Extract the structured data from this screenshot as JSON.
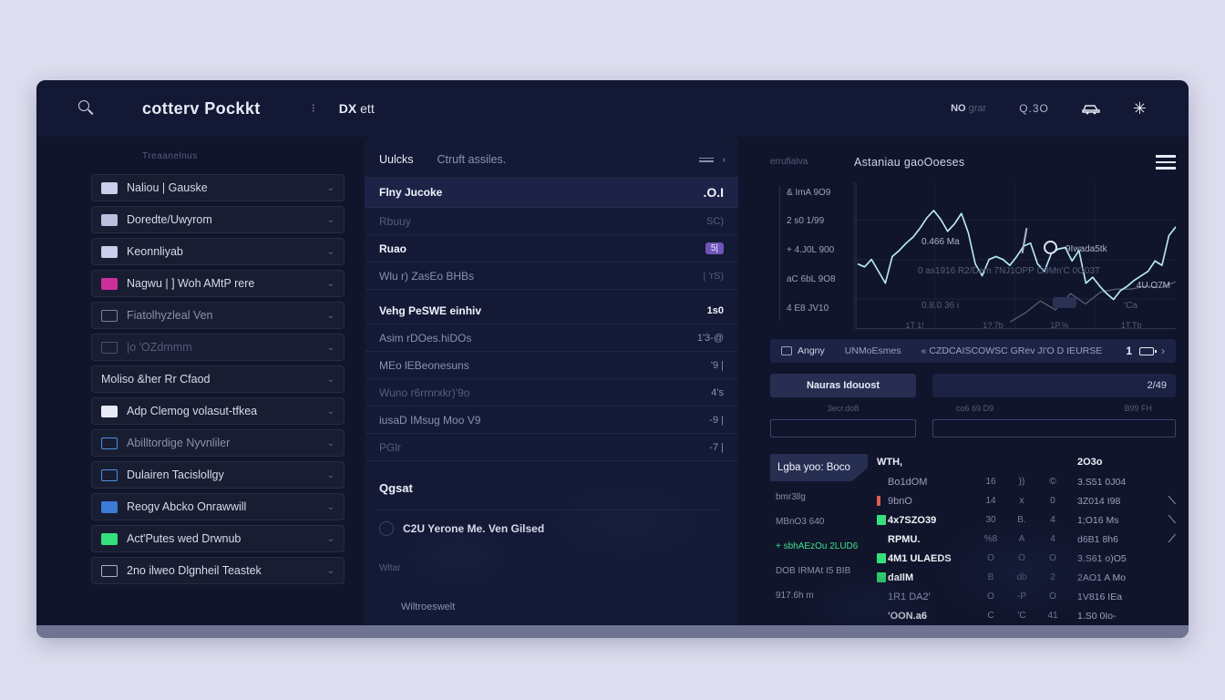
{
  "topbar": {
    "brand": "cotterv Pockkt",
    "dots": "⁝",
    "menu_bold": "DX",
    "menu_rest": " ett",
    "right_stat_strong": "NO",
    "right_stat_dim": " grar",
    "time": "Q.3O"
  },
  "sidebar": {
    "section_label": "Treaanelnus",
    "chevron_char": "⌄",
    "items": [
      {
        "label": "Naliou | Gauske",
        "label_cls": "",
        "icon_css": "background:#c9cfe8"
      },
      {
        "label": "Doredte/Uwyrom",
        "label_cls": "",
        "icon_css": "background:#b9bfdd"
      },
      {
        "label": "Keonnliyab",
        "label_cls": "",
        "icon_css": "background:#c9cfe8"
      },
      {
        "label": "Nagwu | ] Woh AMtP rere",
        "label_cls": "",
        "icon_css": "background:#cc2f9a"
      },
      {
        "label": "Fiatolhyzleal Ven",
        "label_cls": "faded",
        "icon_css": "border:1px solid #7a80a0"
      },
      {
        "label": "|o 'OZdmmm",
        "label_cls": "dim",
        "icon_css": "border:1px solid #4a5070"
      },
      {
        "label": "Moliso &her Rr Cfaod",
        "label_cls": "",
        "icon_css": "display:none"
      },
      {
        "label": "Adp Clemog volasut-tfkea",
        "label_cls": "",
        "icon_css": "background:#e8eaf5"
      },
      {
        "label": "Abilltordige Nyvnliler",
        "label_cls": "faded",
        "icon_css": "border:1px solid #4f8fe0"
      },
      {
        "label": "Dulairen Tacislollgy",
        "label_cls": "",
        "icon_css": "border:1px solid #4f8fe0"
      },
      {
        "label": "Reogv Abcko Onrawwill",
        "label_cls": "",
        "icon_css": "background:#3a7bd5"
      },
      {
        "label": "Act'Putes wed Drwnub",
        "label_cls": "",
        "icon_css": "background:#35df7d"
      },
      {
        "label": "2no ilweo Dlgnheil Teastek",
        "label_cls": "",
        "icon_css": "border:1px solid #aab0cc"
      }
    ]
  },
  "watchlist": {
    "tabs": [
      {
        "label": "Uulcks",
        "cls": "active"
      },
      {
        "label": "Ctruft assiles.",
        "cls": "inactive"
      }
    ],
    "control_label": "mov",
    "control_chevron": "‹",
    "rows": [
      {
        "name": "Flny Jucoke",
        "value": ".O.I",
        "name_cls": "bold",
        "value_cls": "bold big",
        "row_cls": "hl"
      },
      {
        "name": "Rbuuy",
        "value": "SC)",
        "name_cls": "dim",
        "value_cls": "dim",
        "row_cls": ""
      },
      {
        "name": "Ruao",
        "value": "5|",
        "name_cls": "bold",
        "value_cls": "badge",
        "row_cls": ""
      },
      {
        "name": "Wlu r) ZasEo BHBs",
        "value": "| 'rS)",
        "name_cls": "faded",
        "value_cls": "dim",
        "row_cls": "gap-after"
      },
      {
        "name": "Vehg PeSWE einhiv",
        "value": "1s0",
        "name_cls": "bold",
        "value_cls": "bold",
        "row_cls": ""
      },
      {
        "name": "Asim rDOes.hiDOs",
        "value": "1'3-@",
        "name_cls": "faded",
        "value_cls": "faded",
        "row_cls": ""
      },
      {
        "name": "MEo lEBeonesuns",
        "value": "'9 |",
        "name_cls": "faded",
        "value_cls": "faded",
        "row_cls": ""
      },
      {
        "name": "Wuno r6rrnrxkr)'9o",
        "value": "4's",
        "name_cls": "dim",
        "value_cls": "faded",
        "row_cls": ""
      },
      {
        "name": "iusaD IMsug Moo V9",
        "value": "-9 |",
        "name_cls": "faded",
        "value_cls": "faded",
        "row_cls": ""
      },
      {
        "name": "PGlr",
        "value": "-7 |",
        "name_cls": "dim",
        "value_cls": "faded",
        "row_cls": ""
      }
    ],
    "section": {
      "title": "Qgsat",
      "row_text": "C2U Yerone Me.  Ven Gilsed",
      "sub_text": "Wltar"
    },
    "footer": "Wiltroeswelt"
  },
  "market": {
    "sublabel": "errufialva",
    "title": "Astaniau gaoOoeses",
    "stats": [
      {
        "text": "& ImA 9O9"
      },
      {
        "text": "2 s0 1/99"
      },
      {
        "text": "+ 4.J0L 900"
      },
      {
        "text": "aC 6bL 9O8"
      },
      {
        "text": "4 E8 JV10"
      }
    ],
    "chart": {
      "line_color": "#b7ecf0",
      "line": [
        55,
        57,
        52,
        60,
        68,
        50,
        46,
        41,
        37,
        31,
        24,
        19,
        25,
        33,
        28,
        21,
        34,
        55,
        63,
        52,
        50,
        52,
        56,
        50,
        43,
        41,
        55,
        60,
        48,
        45,
        44,
        53,
        46,
        68,
        64,
        70,
        75,
        79,
        73,
        70,
        66,
        63,
        60,
        53,
        56,
        36,
        30
      ],
      "line2": [
        94,
        88,
        80,
        86,
        75,
        82,
        74,
        72,
        72,
        70,
        71,
        67
      ],
      "anno_price": "0.466 Ma",
      "anno_user": "9Iwada5tk",
      "anno_note": "0 as1916 R2/Dem 7NJ1OPP  O9Mn'C 0O03T",
      "anno_right": "4U.O7M",
      "anno_low": "0.8.0 36 i",
      "anno_ca": "'Ca",
      "ticks": [
        {
          "t": "1T 1!",
          "pos": "left:16%"
        },
        {
          "t": "1?.7b",
          "pos": "left:40%"
        },
        {
          "t": "1P.%",
          "pos": "left:61%"
        },
        {
          "t": "1T.Tb",
          "pos": "left:83%"
        }
      ]
    },
    "tabbar": {
      "tab1": "Angny",
      "tab2": "UNMoEsmes",
      "tab3": "« CZDCAISCOWSC GRev JI'O D IEURSE",
      "count": "1",
      "chevron": "›"
    },
    "cards": {
      "button_label": "Nauras Idouost",
      "left_sub": "3ecr.do8",
      "right_value": "2/49",
      "right_lbl1": "co6 69 D9",
      "right_lbl2": "B99 FH"
    },
    "table": {
      "left_items": [
        {
          "label": "Lgba yoo: Boco",
          "cls": "active"
        },
        {
          "label": "bmr3llg",
          "cls": ""
        },
        {
          "label": "MBnO3 640",
          "cls": ""
        },
        {
          "label": "+ sbhAEzOu 2LUD6",
          "cls": "green"
        },
        {
          "label": "DOB IRMAt I5 BIB",
          "cls": ""
        },
        {
          "label": "917.6h m",
          "cls": ""
        }
      ],
      "header_name": "WTH,",
      "header_value": "2O3o",
      "rows": [
        {
          "name": "Bo1dOM",
          "c1": "16",
          "c2": "))",
          "c3": "©",
          "value": "3.S51 0J04",
          "trend": "",
          "name_cls": "",
          "marker_css": ""
        },
        {
          "name": "9bnO",
          "c1": "14",
          "c2": "x",
          "c3": "0",
          "value": "3Z014 I98",
          "trend": "⟍",
          "name_cls": "",
          "marker_css": "background:#e05e52;width:4px;margin-right:8px"
        },
        {
          "name": "4x7SZO39",
          "c1": "30",
          "c2": "B.",
          "c3": "4",
          "value": "1;O16 Ms",
          "trend": "⟍",
          "name_cls": "bold",
          "marker_css": "background:#35df7d"
        },
        {
          "name": "RPMU.",
          "c1": "%8",
          "c2": "A",
          "c3": "4",
          "value": "d6B1 8h6",
          "trend": "⟋",
          "name_cls": "bold",
          "marker_css": ""
        },
        {
          "name": "4M1 ULAEDS",
          "c1": "O",
          "c2": "O",
          "c3": "O",
          "value": "3.S61 o)O5",
          "trend": "",
          "name_cls": "bold",
          "marker_css": "background:#35df7d"
        },
        {
          "name": "daIlM",
          "c1": "B",
          "c2": "db",
          "c3": "2",
          "value": "2AO1 A Mo",
          "trend": "",
          "name_cls": "bold",
          "marker_css": "background:#2fd973"
        },
        {
          "name": "1R1 DA2'",
          "c1": "O",
          "c2": "-P",
          "c3": "O",
          "value": "1V816 IEa",
          "trend": "",
          "name_cls": "",
          "marker_css": ""
        },
        {
          "name": "'OON.a6",
          "c1": "C",
          "c2": "'C",
          "c3": "41",
          "value": "1.S0 0Io-",
          "trend": "",
          "name_cls": "bold",
          "marker_css": ""
        }
      ]
    }
  }
}
